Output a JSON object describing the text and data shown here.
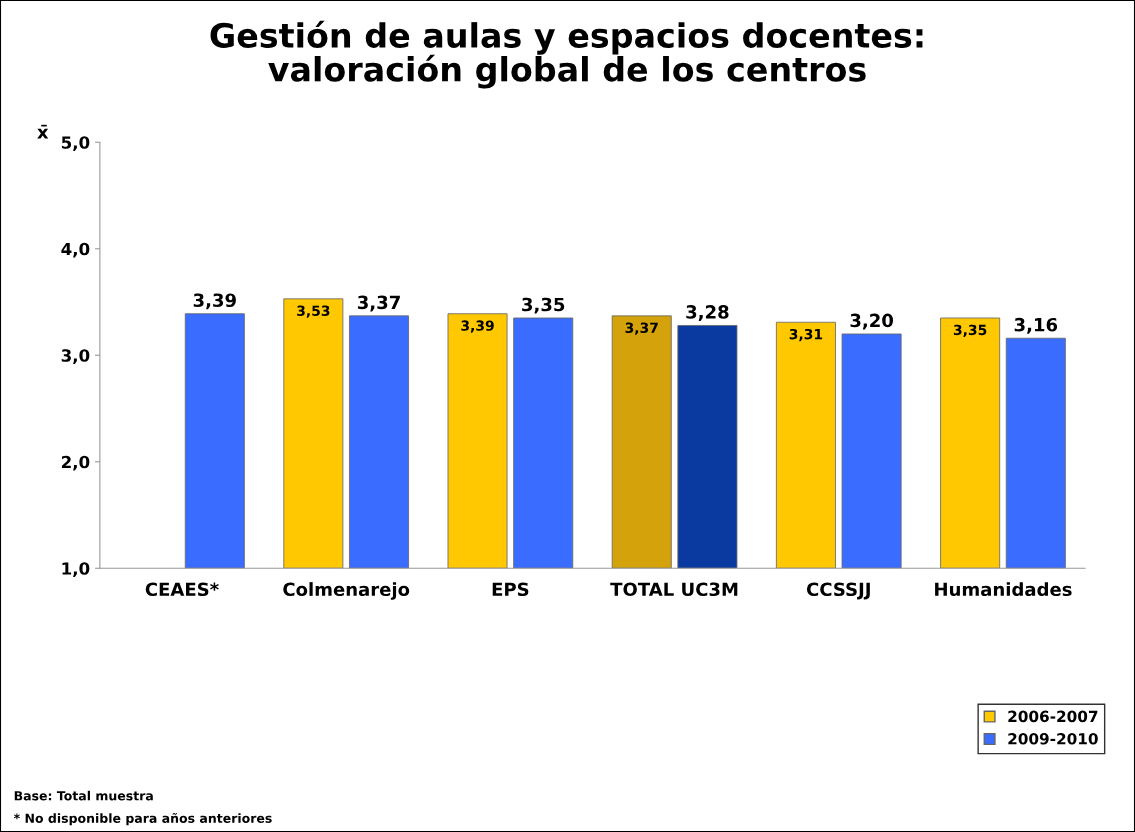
{
  "chart_data": {
    "type": "bar",
    "title": "Gestión de aulas y espacios docentes:\nvaloración global de los centros",
    "ylabel": "x̄",
    "categories": [
      "CEAES*",
      "Colmenarejo",
      "EPS",
      "TOTAL UC3M",
      "CCSSJJ",
      "Humanidades"
    ],
    "series": [
      {
        "name": "2006-2007",
        "color": "#ffc800",
        "colors": [
          "#ffc800",
          "#ffc800",
          "#ffc800",
          "#d4a20a",
          "#ffc800",
          "#ffc800"
        ],
        "values": [
          null,
          3.53,
          3.39,
          3.37,
          3.31,
          3.35
        ],
        "value_labels": [
          null,
          "3,53",
          "3,39",
          "3,37",
          "3,31",
          "3,35"
        ]
      },
      {
        "name": "2009-2010",
        "color": "#3a6cff",
        "colors": [
          "#3a6cff",
          "#3a6cff",
          "#3a6cff",
          "#0a3aa0",
          "#3a6cff",
          "#3a6cff"
        ],
        "values": [
          3.39,
          3.37,
          3.35,
          3.28,
          3.2,
          3.16
        ],
        "value_labels": [
          "3,39",
          "3,37",
          "3,35",
          "3,28",
          "3,20",
          "3,16"
        ]
      }
    ],
    "ylim": [
      1.0,
      5.0
    ],
    "yticks": [
      {
        "value": 1.0,
        "label": "1,0"
      },
      {
        "value": 2.0,
        "label": "2,0"
      },
      {
        "value": 3.0,
        "label": "3,0"
      },
      {
        "value": 4.0,
        "label": "4,0"
      },
      {
        "value": 5.0,
        "label": "5,0"
      }
    ],
    "grid": false,
    "legend": "bottom right",
    "annotations": [
      "Base: Total muestra",
      "* No disponible para años anteriores"
    ]
  }
}
